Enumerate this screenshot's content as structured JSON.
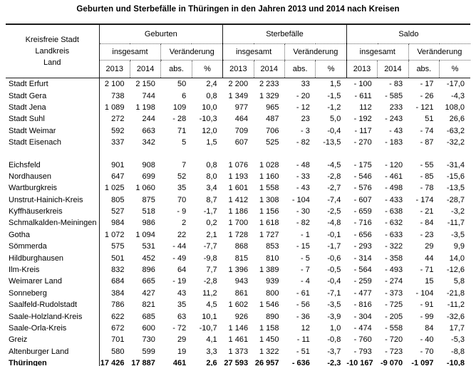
{
  "title": "Geburten und Sterbefälle in Thüringen in den Jahren 2013 und 2014 nach Kreisen",
  "table": {
    "header": {
      "row_label_lines": [
        "Kreisfreie Stadt",
        "Landkreis",
        "Land"
      ],
      "groups": [
        "Geburten",
        "Sterbefälle",
        "Saldo"
      ],
      "subgroups": [
        "insgesamt",
        "Veränderung"
      ],
      "columns": [
        "2013",
        "2014",
        "abs.",
        "%"
      ]
    },
    "sections": [
      {
        "rows": [
          [
            "Stadt Erfurt",
            "2 100",
            "2 150",
            "50",
            "2,4",
            "2 200",
            "2 233",
            "33",
            "1,5",
            "- 100",
            "- 83",
            "- 17",
            "-17,0"
          ],
          [
            "Stadt Gera",
            "738",
            "744",
            "6",
            "0,8",
            "1 349",
            "1 329",
            "- 20",
            "-1,5",
            "- 611",
            "- 585",
            "- 26",
            "-4,3"
          ],
          [
            "Stadt Jena",
            "1 089",
            "1 198",
            "109",
            "10,0",
            "977",
            "965",
            "- 12",
            "-1,2",
            "112",
            "233",
            "- 121",
            "108,0"
          ],
          [
            "Stadt Suhl",
            "272",
            "244",
            "- 28",
            "-10,3",
            "464",
            "487",
            "23",
            "5,0",
            "- 192",
            "- 243",
            "51",
            "26,6"
          ],
          [
            "Stadt Weimar",
            "592",
            "663",
            "71",
            "12,0",
            "709",
            "706",
            "- 3",
            "-0,4",
            "- 117",
            "- 43",
            "- 74",
            "-63,2"
          ],
          [
            "Stadt Eisenach",
            "337",
            "342",
            "5",
            "1,5",
            "607",
            "525",
            "- 82",
            "-13,5",
            "- 270",
            "- 183",
            "- 87",
            "-32,2"
          ]
        ]
      },
      {
        "rows": [
          [
            "Eichsfeld",
            "901",
            "908",
            "7",
            "0,8",
            "1 076",
            "1 028",
            "- 48",
            "-4,5",
            "- 175",
            "- 120",
            "- 55",
            "-31,4"
          ],
          [
            "Nordhausen",
            "647",
            "699",
            "52",
            "8,0",
            "1 193",
            "1 160",
            "- 33",
            "-2,8",
            "- 546",
            "- 461",
            "- 85",
            "-15,6"
          ],
          [
            "Wartburgkreis",
            "1 025",
            "1 060",
            "35",
            "3,4",
            "1 601",
            "1 558",
            "- 43",
            "-2,7",
            "- 576",
            "- 498",
            "- 78",
            "-13,5"
          ],
          [
            "Unstrut-Hainich-Kreis",
            "805",
            "875",
            "70",
            "8,7",
            "1 412",
            "1 308",
            "- 104",
            "-7,4",
            "- 607",
            "- 433",
            "- 174",
            "-28,7"
          ],
          [
            "Kyffhäuserkreis",
            "527",
            "518",
            "- 9",
            "-1,7",
            "1 186",
            "1 156",
            "- 30",
            "-2,5",
            "- 659",
            "- 638",
            "- 21",
            "-3,2"
          ],
          [
            "Schmalkalden-Meiningen",
            "984",
            "986",
            "2",
            "0,2",
            "1 700",
            "1 618",
            "- 82",
            "-4,8",
            "- 716",
            "- 632",
            "- 84",
            "-11,7"
          ],
          [
            "Gotha",
            "1 072",
            "1 094",
            "22",
            "2,1",
            "1 728",
            "1 727",
            "- 1",
            "-0,1",
            "- 656",
            "- 633",
            "- 23",
            "-3,5"
          ],
          [
            "Sömmerda",
            "575",
            "531",
            "- 44",
            "-7,7",
            "868",
            "853",
            "- 15",
            "-1,7",
            "- 293",
            "- 322",
            "29",
            "9,9"
          ],
          [
            "Hildburghausen",
            "501",
            "452",
            "- 49",
            "-9,8",
            "815",
            "810",
            "- 5",
            "-0,6",
            "- 314",
            "- 358",
            "44",
            "14,0"
          ],
          [
            "Ilm-Kreis",
            "832",
            "896",
            "64",
            "7,7",
            "1 396",
            "1 389",
            "- 7",
            "-0,5",
            "- 564",
            "- 493",
            "- 71",
            "-12,6"
          ],
          [
            "Weimarer Land",
            "684",
            "665",
            "- 19",
            "-2,8",
            "943",
            "939",
            "- 4",
            "-0,4",
            "- 259",
            "- 274",
            "15",
            "5,8"
          ],
          [
            "Sonneberg",
            "384",
            "427",
            "43",
            "11,2",
            "861",
            "800",
            "- 61",
            "-7,1",
            "- 477",
            "- 373",
            "- 104",
            "-21,8"
          ],
          [
            "Saalfeld-Rudolstadt",
            "786",
            "821",
            "35",
            "4,5",
            "1 602",
            "1 546",
            "- 56",
            "-3,5",
            "- 816",
            "- 725",
            "- 91",
            "-11,2"
          ],
          [
            "Saale-Holzland-Kreis",
            "622",
            "685",
            "63",
            "10,1",
            "926",
            "890",
            "- 36",
            "-3,9",
            "- 304",
            "- 205",
            "- 99",
            "-32,6"
          ],
          [
            "Saale-Orla-Kreis",
            "672",
            "600",
            "- 72",
            "-10,7",
            "1 146",
            "1 158",
            "12",
            "1,0",
            "- 474",
            "- 558",
            "84",
            "17,7"
          ],
          [
            "Greiz",
            "701",
            "730",
            "29",
            "4,1",
            "1 461",
            "1 450",
            "- 11",
            "-0,8",
            "- 760",
            "- 720",
            "- 40",
            "-5,3"
          ],
          [
            "Altenburger Land",
            "580",
            "599",
            "19",
            "3,3",
            "1 373",
            "1 322",
            "- 51",
            "-3,7",
            "- 793",
            "- 723",
            "- 70",
            "-8,8"
          ]
        ]
      }
    ],
    "total_row": [
      "Thüringen",
      "17 426",
      "17 887",
      "461",
      "2,6",
      "27 593",
      "26 957",
      "- 636",
      "-2,3",
      "-10 167",
      "-9 070",
      "-1 097",
      "-10,8"
    ]
  }
}
